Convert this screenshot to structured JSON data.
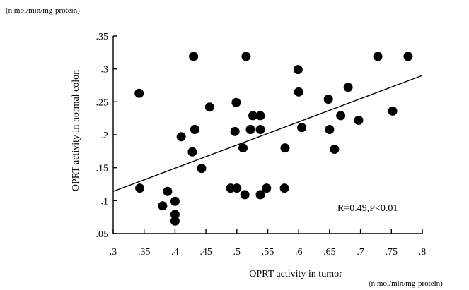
{
  "chart_data": {
    "type": "scatter",
    "title": "",
    "xlabel": "OPRT activity in tumor",
    "ylabel": "OPRT activity in normal colon",
    "x_unit": "(n mol/min/mg-protein)",
    "y_unit": "(n mol/min/mg-protein)",
    "xlim": [
      0.3,
      0.8
    ],
    "ylim": [
      0.05,
      0.35
    ],
    "x_ticks": [
      0.3,
      0.35,
      0.4,
      0.45,
      0.5,
      0.55,
      0.6,
      0.65,
      0.7,
      0.75,
      0.8
    ],
    "x_tick_labels": [
      ".3",
      ".35",
      ".4",
      ".45",
      ".5",
      ".55",
      ".6",
      ".65",
      ".7",
      ".75",
      ".8"
    ],
    "y_ticks": [
      0.05,
      0.1,
      0.15,
      0.2,
      0.25,
      0.3,
      0.35
    ],
    "y_tick_labels": [
      ".05",
      ".1",
      ".15",
      ".2",
      ".25",
      ".3",
      ".35"
    ],
    "grid": false,
    "annotation": "R=0.49,P<0.01",
    "regression_line": {
      "x": [
        0.3,
        0.8
      ],
      "y": [
        0.114,
        0.29
      ]
    },
    "series": [
      {
        "points": [
          [
            0.342,
            0.263
          ],
          [
            0.343,
            0.119
          ],
          [
            0.38,
            0.092
          ],
          [
            0.388,
            0.114
          ],
          [
            0.4,
            0.099
          ],
          [
            0.4,
            0.079
          ],
          [
            0.4,
            0.069
          ],
          [
            0.41,
            0.197
          ],
          [
            0.428,
            0.174
          ],
          [
            0.43,
            0.319
          ],
          [
            0.432,
            0.208
          ],
          [
            0.443,
            0.149
          ],
          [
            0.456,
            0.242
          ],
          [
            0.49,
            0.119
          ],
          [
            0.497,
            0.205
          ],
          [
            0.499,
            0.249
          ],
          [
            0.5,
            0.119
          ],
          [
            0.51,
            0.18
          ],
          [
            0.513,
            0.109
          ],
          [
            0.515,
            0.319
          ],
          [
            0.522,
            0.208
          ],
          [
            0.526,
            0.229
          ],
          [
            0.538,
            0.229
          ],
          [
            0.538,
            0.208
          ],
          [
            0.538,
            0.109
          ],
          [
            0.548,
            0.119
          ],
          [
            0.577,
            0.119
          ],
          [
            0.578,
            0.18
          ],
          [
            0.599,
            0.299
          ],
          [
            0.6,
            0.265
          ],
          [
            0.605,
            0.211
          ],
          [
            0.648,
            0.254
          ],
          [
            0.65,
            0.208
          ],
          [
            0.658,
            0.178
          ],
          [
            0.668,
            0.229
          ],
          [
            0.68,
            0.272
          ],
          [
            0.697,
            0.222
          ],
          [
            0.728,
            0.319
          ],
          [
            0.752,
            0.236
          ],
          [
            0.777,
            0.319
          ]
        ]
      }
    ]
  }
}
